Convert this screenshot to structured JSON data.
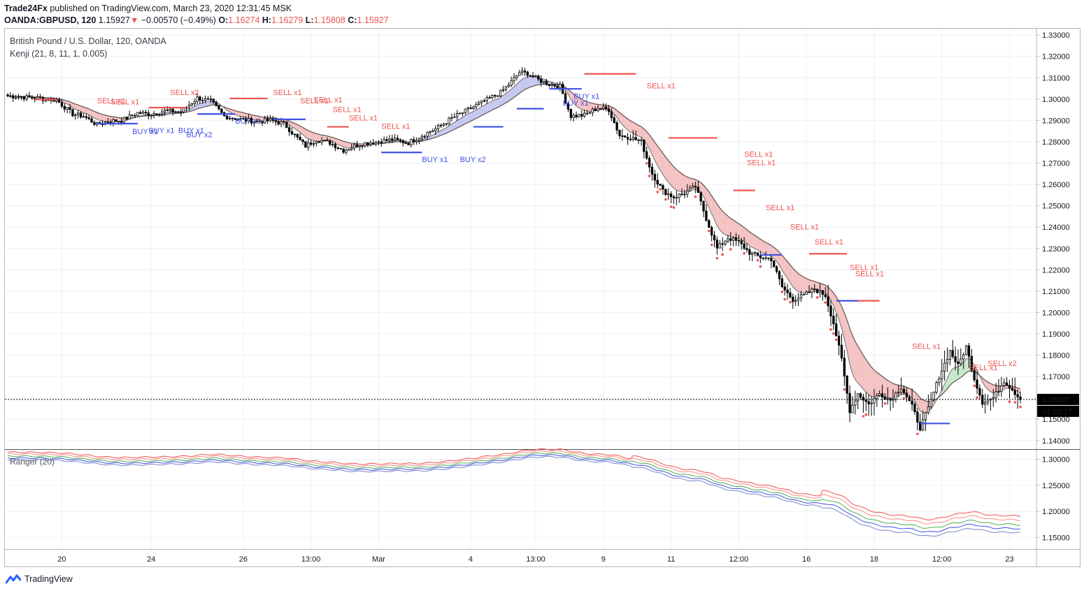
{
  "header": {
    "publisher": "Trade24Fx",
    "published_text": "published on TradingView.com, March 23, 2020 12:31:45 MSK",
    "symbol": "OANDA:GBPUSD, 120",
    "price": "1.15927",
    "arrow": "▼",
    "change": "−0.00570 (−0.49%)",
    "o_label": "O:",
    "o_value": "1.16274",
    "h_label": "H:",
    "h_value": "1.16279",
    "l_label": "L:",
    "l_value": "1.15808",
    "c_label": "C:",
    "c_value": "1.15927"
  },
  "legend": {
    "instrument": "British Pound / U.S. Dollar, 120, OANDA",
    "indicator": "Kenji (21, 8, 11, 1, 0.005)"
  },
  "indicator_pane": {
    "label": "Ranger (20)"
  },
  "footer": {
    "brand": "TradingView",
    "logo_icon": "tradingview-logo-icon"
  },
  "colors": {
    "bull": "#ffffff",
    "bear": "#000000",
    "sell": "#ef5350",
    "buy": "#3f51e5",
    "band_bear": "#f4c2c2",
    "band_bull": "#c5c8ef",
    "band_green": "#c8e6c9",
    "slow_line": "#6d5b5b",
    "fast_line": "#707070"
  },
  "chart_data": [
    {
      "type": "candlestick",
      "title": "British Pound / U.S. Dollar, 120, OANDA",
      "y_axis_ticks": [
        "1.33000",
        "1.32000",
        "1.31000",
        "1.30000",
        "1.29000",
        "1.28000",
        "1.27000",
        "1.26000",
        "1.25000",
        "1.24000",
        "1.23000",
        "1.22000",
        "1.21000",
        "1.20000",
        "1.19000",
        "1.18000",
        "1.17000",
        "1.16000",
        "1.15000",
        "1.14000"
      ],
      "ylim": [
        1.136,
        1.333
      ],
      "x_axis_ticks": [
        "20",
        "24",
        "26",
        "13:00",
        "Mar",
        "4",
        "13:00",
        "9",
        "11",
        "12:00",
        "16",
        "18",
        "12:00",
        "23"
      ],
      "last_price": "1.15927",
      "countdown": "01:28:17",
      "close_path": [
        [
          0,
          1.3015
        ],
        [
          10,
          1.3005
        ],
        [
          18,
          1.2995
        ],
        [
          24,
          1.293
        ],
        [
          28,
          1.292
        ],
        [
          33,
          1.288
        ],
        [
          37,
          1.2895
        ],
        [
          42,
          1.29
        ],
        [
          48,
          1.2935
        ],
        [
          53,
          1.293
        ],
        [
          58,
          1.2945
        ],
        [
          64,
          1.294
        ],
        [
          70,
          1.3005
        ],
        [
          75,
          1.299
        ],
        [
          80,
          1.292
        ],
        [
          86,
          1.2905
        ],
        [
          92,
          1.2895
        ],
        [
          97,
          1.29
        ],
        [
          102,
          1.2885
        ],
        [
          106,
          1.283
        ],
        [
          110,
          1.278
        ],
        [
          114,
          1.281
        ],
        [
          119,
          1.2795
        ],
        [
          124,
          1.276
        ],
        [
          130,
          1.279
        ],
        [
          136,
          1.28
        ],
        [
          142,
          1.281
        ],
        [
          148,
          1.2795
        ],
        [
          153,
          1.283
        ],
        [
          158,
          1.286
        ],
        [
          164,
          1.291
        ],
        [
          170,
          1.295
        ],
        [
          176,
          1.299
        ],
        [
          182,
          1.303
        ],
        [
          186,
          1.308
        ],
        [
          189,
          1.3125
        ],
        [
          192,
          1.312
        ],
        [
          196,
          1.309
        ],
        [
          200,
          1.307
        ],
        [
          204,
          1.306
        ],
        [
          208,
          1.292
        ],
        [
          213,
          1.2925
        ],
        [
          218,
          1.296
        ],
        [
          222,
          1.295
        ],
        [
          226,
          1.283
        ],
        [
          230,
          1.282
        ],
        [
          234,
          1.28
        ],
        [
          238,
          1.265
        ],
        [
          242,
          1.257
        ],
        [
          246,
          1.254
        ],
        [
          250,
          1.256
        ],
        [
          254,
          1.259
        ],
        [
          258,
          1.244
        ],
        [
          262,
          1.23
        ],
        [
          266,
          1.235
        ],
        [
          270,
          1.233
        ],
        [
          274,
          1.228
        ],
        [
          278,
          1.226
        ],
        [
          282,
          1.225
        ],
        [
          286,
          1.212
        ],
        [
          290,
          1.206
        ],
        [
          294,
          1.208
        ],
        [
          298,
          1.211
        ],
        [
          302,
          1.208
        ],
        [
          305,
          1.195
        ],
        [
          308,
          1.178
        ],
        [
          311,
          1.154
        ],
        [
          314,
          1.162
        ],
        [
          318,
          1.157
        ],
        [
          322,
          1.162
        ],
        [
          326,
          1.159
        ],
        [
          330,
          1.165
        ],
        [
          334,
          1.156
        ],
        [
          337,
          1.146
        ],
        [
          340,
          1.155
        ],
        [
          344,
          1.17
        ],
        [
          348,
          1.182
        ],
        [
          351,
          1.175
        ],
        [
          354,
          1.184
        ],
        [
          357,
          1.169
        ],
        [
          360,
          1.158
        ],
        [
          364,
          1.16
        ],
        [
          368,
          1.168
        ],
        [
          371,
          1.164
        ],
        [
          374,
          1.1593
        ]
      ],
      "levels": [
        {
          "side": "sell",
          "price": 1.2998,
          "from": 10,
          "to": 18
        },
        {
          "side": "sell",
          "price": 1.296,
          "from": 52,
          "to": 66
        },
        {
          "side": "sell",
          "price": 1.3003,
          "from": 82,
          "to": 96
        },
        {
          "side": "sell",
          "price": 1.287,
          "from": 118,
          "to": 126
        },
        {
          "side": "sell",
          "price": 1.3118,
          "from": 213,
          "to": 232
        },
        {
          "side": "sell",
          "price": 1.2818,
          "from": 244,
          "to": 262
        },
        {
          "side": "sell",
          "price": 1.2572,
          "from": 268,
          "to": 276
        },
        {
          "side": "sell",
          "price": 1.2275,
          "from": 296,
          "to": 310
        },
        {
          "side": "sell",
          "price": 1.2055,
          "from": 312,
          "to": 322
        },
        {
          "side": "buy",
          "price": 1.2885,
          "from": 33,
          "to": 48
        },
        {
          "side": "buy",
          "price": 1.293,
          "from": 70,
          "to": 84
        },
        {
          "side": "buy",
          "price": 1.275,
          "from": 138,
          "to": 153
        },
        {
          "side": "buy",
          "price": 1.287,
          "from": 172,
          "to": 183
        },
        {
          "side": "buy",
          "price": 1.2955,
          "from": 188,
          "to": 198
        },
        {
          "side": "buy",
          "price": 1.3048,
          "from": 200,
          "to": 212
        },
        {
          "side": "buy",
          "price": 1.2905,
          "from": 98,
          "to": 110
        },
        {
          "side": "buy",
          "price": 1.227,
          "from": 278,
          "to": 286
        },
        {
          "side": "buy",
          "price": 1.2055,
          "from": 306,
          "to": 314
        },
        {
          "side": "buy",
          "price": 1.148,
          "from": 337,
          "to": 348
        }
      ],
      "signals": [
        {
          "text": "SELL x1",
          "side": "sell",
          "at": 33,
          "price": 1.296
        },
        {
          "text": "SELL x1",
          "side": "sell",
          "at": 38,
          "price": 1.2955
        },
        {
          "text": "SELL x2",
          "side": "sell",
          "at": 60,
          "price": 1.3
        },
        {
          "text": "SELL x1",
          "side": "sell",
          "at": 98,
          "price": 1.3
        },
        {
          "text": "SELL x1",
          "side": "sell",
          "at": 108,
          "price": 1.296
        },
        {
          "text": "SELL x1",
          "side": "sell",
          "at": 113,
          "price": 1.2965
        },
        {
          "text": "SELL x1",
          "side": "sell",
          "at": 120,
          "price": 1.292
        },
        {
          "text": "SELL x1",
          "side": "sell",
          "at": 126,
          "price": 1.288
        },
        {
          "text": "SELL x1",
          "side": "sell",
          "at": 138,
          "price": 1.284
        },
        {
          "text": "SELL x1",
          "side": "sell",
          "at": 236,
          "price": 1.303
        },
        {
          "text": "SELL x1",
          "side": "sell",
          "at": 272,
          "price": 1.271
        },
        {
          "text": "SELL x1",
          "side": "sell",
          "at": 273,
          "price": 1.267
        },
        {
          "text": "SELL x1",
          "side": "sell",
          "at": 280,
          "price": 1.246
        },
        {
          "text": "SELL x1",
          "side": "sell",
          "at": 289,
          "price": 1.237
        },
        {
          "text": "SELL x1",
          "side": "sell",
          "at": 298,
          "price": 1.23
        },
        {
          "text": "SELL x1",
          "side": "sell",
          "at": 311,
          "price": 1.218
        },
        {
          "text": "SELL x1",
          "side": "sell",
          "at": 313,
          "price": 1.215
        },
        {
          "text": "SELL x1",
          "side": "sell",
          "at": 334,
          "price": 1.181
        },
        {
          "text": "SELL x1",
          "side": "sell",
          "at": 355,
          "price": 1.171
        },
        {
          "text": "SELL x2",
          "side": "sell",
          "at": 362,
          "price": 1.173
        },
        {
          "text": "BUY x1",
          "side": "buy",
          "at": 46,
          "price": 1.2875
        },
        {
          "text": "BUY x1",
          "side": "buy",
          "at": 52,
          "price": 1.288
        },
        {
          "text": "BUY x1",
          "side": "buy",
          "at": 63,
          "price": 1.288
        },
        {
          "text": "BUY x2",
          "side": "buy",
          "at": 66,
          "price": 1.286
        },
        {
          "text": "BUY x1",
          "side": "buy",
          "at": 84,
          "price": 1.2925
        },
        {
          "text": "BUY x1",
          "side": "buy",
          "at": 153,
          "price": 1.2745
        },
        {
          "text": "BUY x2",
          "side": "buy",
          "at": 167,
          "price": 1.2745
        },
        {
          "text": "BUY x1",
          "side": "buy",
          "at": 209,
          "price": 1.304
        },
        {
          "text": "BUY x1",
          "side": "buy",
          "at": 205,
          "price": 1.301
        }
      ]
    },
    {
      "type": "line",
      "title": "Ranger (20)",
      "y_axis_ticks": [
        "1.30000",
        "1.25000",
        "1.20000",
        "1.15000"
      ],
      "ylim": [
        1.128,
        1.318
      ],
      "series": [
        {
          "color": "#ef5350",
          "offset": 0.012
        },
        {
          "color": "#ff8a80",
          "offset": 0.0085
        },
        {
          "color": "#4caf50",
          "offset": 0.0045
        },
        {
          "color": "#3f51e5",
          "offset": 0.001
        },
        {
          "color": "#7986cb",
          "offset": -0.0025
        }
      ]
    }
  ]
}
